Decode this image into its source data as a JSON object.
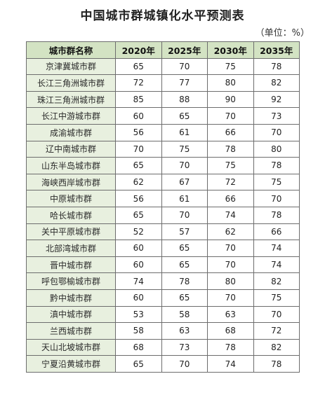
{
  "title": "中国城市群城镇化水平预测表",
  "unit": "（单位：%）",
  "table": {
    "headers": [
      "城市群名称",
      "2020年",
      "2025年",
      "2030年",
      "2035年"
    ],
    "rows": [
      {
        "name": "京津冀城市群",
        "values": [
          "65",
          "70",
          "75",
          "78"
        ]
      },
      {
        "name": "长江三角洲城市群",
        "values": [
          "72",
          "77",
          "80",
          "82"
        ]
      },
      {
        "name": "珠江三角洲城市群",
        "values": [
          "85",
          "88",
          "90",
          "92"
        ]
      },
      {
        "name": "长江中游城市群",
        "values": [
          "60",
          "65",
          "70",
          "73"
        ]
      },
      {
        "name": "成渝城市群",
        "values": [
          "56",
          "61",
          "66",
          "70"
        ]
      },
      {
        "name": "辽中南城市群",
        "values": [
          "70",
          "75",
          "78",
          "80"
        ]
      },
      {
        "name": "山东半岛城市群",
        "values": [
          "65",
          "70",
          "75",
          "78"
        ]
      },
      {
        "name": "海峡西岸城市群",
        "values": [
          "62",
          "67",
          "72",
          "75"
        ]
      },
      {
        "name": "中原城市群",
        "values": [
          "56",
          "61",
          "66",
          "70"
        ]
      },
      {
        "name": "哈长城市群",
        "values": [
          "65",
          "70",
          "74",
          "78"
        ]
      },
      {
        "name": "关中平原城市群",
        "values": [
          "52",
          "57",
          "62",
          "66"
        ]
      },
      {
        "name": "北部湾城市群",
        "values": [
          "60",
          "65",
          "70",
          "74"
        ]
      },
      {
        "name": "晋中城市群",
        "values": [
          "60",
          "65",
          "70",
          "74"
        ]
      },
      {
        "name": "呼包鄂榆城市群",
        "values": [
          "74",
          "78",
          "80",
          "82"
        ]
      },
      {
        "name": "黔中城市群",
        "values": [
          "60",
          "65",
          "70",
          "75"
        ]
      },
      {
        "name": "滇中城市群",
        "values": [
          "53",
          "58",
          "63",
          "70"
        ]
      },
      {
        "name": "兰西城市群",
        "values": [
          "58",
          "63",
          "68",
          "72"
        ]
      },
      {
        "name": "天山北坡城市群",
        "values": [
          "68",
          "73",
          "78",
          "82"
        ]
      },
      {
        "name": "宁夏沿黄城市群",
        "values": [
          "65",
          "70",
          "74",
          "78"
        ]
      }
    ]
  }
}
